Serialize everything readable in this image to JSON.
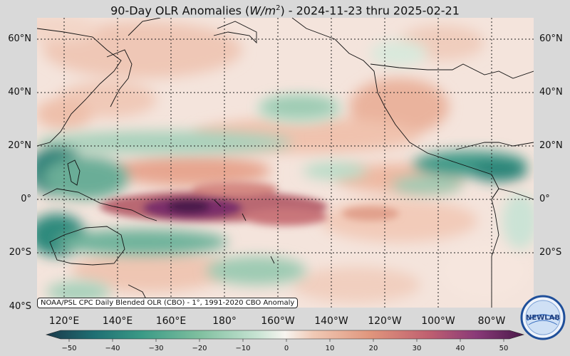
{
  "title": {
    "prefix": "90-Day OLR Anomalies (",
    "unit_base": "W/m",
    "unit_exp": "2",
    "suffix": ") - 2024-11-23 thru 2025-02-21"
  },
  "lat_labels": [
    "60°N",
    "40°N",
    "20°N",
    "0°",
    "20°S",
    "40°S"
  ],
  "lon_labels": [
    "120°E",
    "140°E",
    "160°E",
    "180°",
    "160°W",
    "140°W",
    "120°W",
    "100°W",
    "80°W"
  ],
  "credit": "NOAA/PSL CPC Daily Blended OLR (CBO) - 1°, 1991-2020 CBO Anomaly",
  "colorbar": {
    "ticks": [
      "−50",
      "−40",
      "−30",
      "−20",
      "−10",
      "0",
      "10",
      "20",
      "30",
      "40",
      "50"
    ],
    "colors": [
      "#1b3a4b",
      "#1f6f73",
      "#3a9a86",
      "#7fbf9f",
      "#c6e3d2",
      "#f7f4f0",
      "#f0c9b5",
      "#e0957c",
      "#c06070",
      "#8a3a78",
      "#4a1a4a"
    ]
  },
  "logo": {
    "text": "NEWLAB",
    "icon": "psl-logo-icon"
  }
}
